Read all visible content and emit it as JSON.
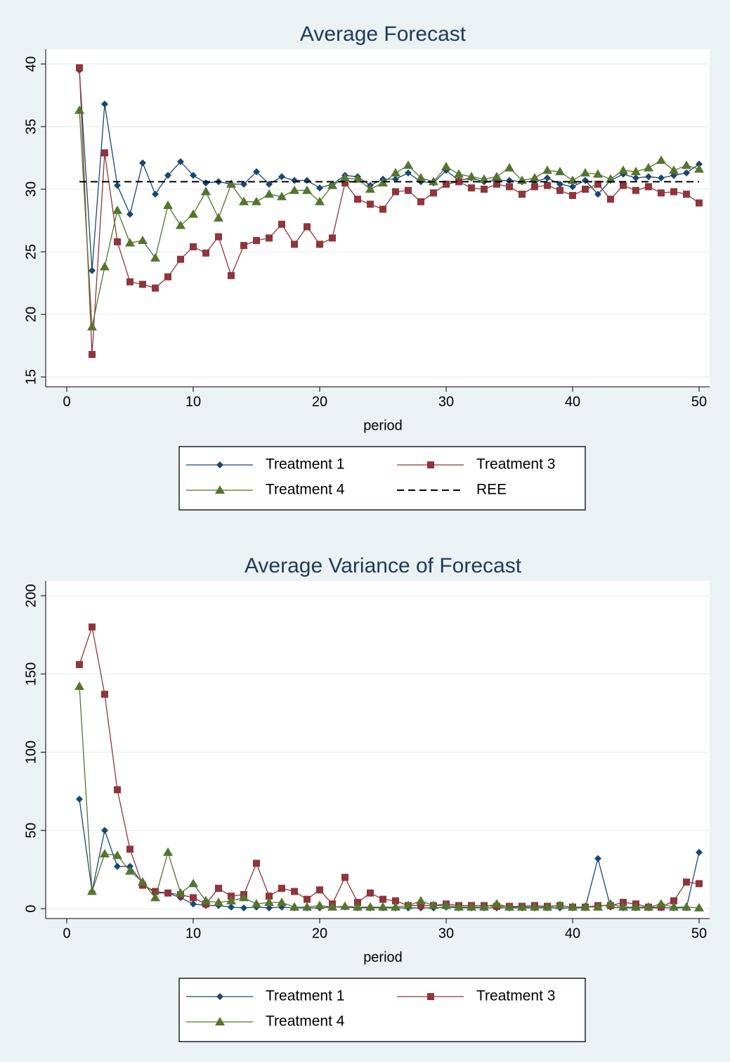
{
  "chart_data": [
    {
      "type": "line",
      "title": "Average Forecast",
      "x_label": "period",
      "x": [
        1,
        2,
        3,
        4,
        5,
        6,
        7,
        8,
        9,
        10,
        11,
        12,
        13,
        14,
        15,
        16,
        17,
        18,
        19,
        20,
        21,
        22,
        23,
        24,
        25,
        26,
        27,
        28,
        29,
        30,
        31,
        32,
        33,
        34,
        35,
        36,
        37,
        38,
        39,
        40,
        41,
        42,
        43,
        44,
        45,
        46,
        47,
        48,
        49,
        50
      ],
      "xlim": [
        0,
        50
      ],
      "xticks": [
        0,
        10,
        20,
        30,
        40,
        50
      ],
      "ylim": [
        15,
        40
      ],
      "yticks": [
        15,
        20,
        25,
        30,
        35,
        40
      ],
      "grid": true,
      "series": [
        {
          "name": "Treatment 1",
          "color": "#1a476f",
          "marker": "diamond",
          "values": [
            39.5,
            23.5,
            36.8,
            30.3,
            28.0,
            32.1,
            29.6,
            31.1,
            32.2,
            31.1,
            30.5,
            30.6,
            30.4,
            30.4,
            31.4,
            30.4,
            31.0,
            30.7,
            30.7,
            30.1,
            30.4,
            31.1,
            31.0,
            30.3,
            30.8,
            30.8,
            31.3,
            30.6,
            30.5,
            31.5,
            30.7,
            30.9,
            30.6,
            30.7,
            30.7,
            30.6,
            30.6,
            30.9,
            30.4,
            30.2,
            30.7,
            29.6,
            30.7,
            31.2,
            30.9,
            31.0,
            30.9,
            31.1,
            31.3,
            32.0
          ]
        },
        {
          "name": "Treatment 3",
          "color": "#90353b",
          "marker": "square",
          "values": [
            39.7,
            16.8,
            32.9,
            25.8,
            22.6,
            22.4,
            22.1,
            23.0,
            24.4,
            25.4,
            24.9,
            26.2,
            23.1,
            25.5,
            25.9,
            26.1,
            27.2,
            25.6,
            27.0,
            25.6,
            26.1,
            30.5,
            29.2,
            28.8,
            28.4,
            29.8,
            29.9,
            29.0,
            29.7,
            30.4,
            30.6,
            30.1,
            30.0,
            30.4,
            30.2,
            29.6,
            30.2,
            30.3,
            29.9,
            29.5,
            30.0,
            30.4,
            29.2,
            30.3,
            29.9,
            30.2,
            29.7,
            29.8,
            29.6,
            28.9
          ]
        },
        {
          "name": "Treatment 4",
          "color": "#55752f",
          "marker": "triangle",
          "values": [
            36.3,
            19.0,
            23.8,
            28.3,
            25.7,
            25.9,
            24.5,
            28.7,
            27.1,
            28.0,
            29.8,
            27.7,
            30.4,
            29.0,
            29.0,
            29.6,
            29.4,
            29.9,
            29.9,
            29.0,
            30.3,
            30.9,
            30.8,
            30.0,
            30.5,
            31.3,
            31.9,
            30.9,
            30.6,
            31.8,
            31.2,
            31.0,
            30.8,
            31.0,
            31.7,
            30.7,
            30.9,
            31.5,
            31.4,
            30.7,
            31.3,
            31.2,
            30.8,
            31.5,
            31.4,
            31.7,
            32.3,
            31.5,
            31.9,
            31.6
          ]
        },
        {
          "name": "REE",
          "color": "#000000",
          "marker": "none",
          "dash": true,
          "values": [
            30.6,
            30.6,
            30.6,
            30.6,
            30.6,
            30.6,
            30.6,
            30.6,
            30.6,
            30.6,
            30.6,
            30.6,
            30.6,
            30.6,
            30.6,
            30.6,
            30.6,
            30.6,
            30.6,
            30.6,
            30.6,
            30.6,
            30.6,
            30.6,
            30.6,
            30.6,
            30.6,
            30.6,
            30.6,
            30.6,
            30.6,
            30.6,
            30.6,
            30.6,
            30.6,
            30.6,
            30.6,
            30.6,
            30.6,
            30.6,
            30.6,
            30.6,
            30.6,
            30.6,
            30.6,
            30.6,
            30.6,
            30.6,
            30.6,
            30.6
          ]
        }
      ]
    },
    {
      "type": "line",
      "title": "Average Variance of Forecast",
      "x_label": "period",
      "x": [
        1,
        2,
        3,
        4,
        5,
        6,
        7,
        8,
        9,
        10,
        11,
        12,
        13,
        14,
        15,
        16,
        17,
        18,
        19,
        20,
        21,
        22,
        23,
        24,
        25,
        26,
        27,
        28,
        29,
        30,
        31,
        32,
        33,
        34,
        35,
        36,
        37,
        38,
        39,
        40,
        41,
        42,
        43,
        44,
        45,
        46,
        47,
        48,
        49,
        50
      ],
      "xlim": [
        0,
        50
      ],
      "xticks": [
        0,
        10,
        20,
        30,
        40,
        50
      ],
      "ylim": [
        0,
        200
      ],
      "yticks": [
        0,
        50,
        100,
        150,
        200
      ],
      "grid": true,
      "series": [
        {
          "name": "Treatment 1",
          "color": "#1a476f",
          "marker": "diamond",
          "values": [
            70,
            11,
            50,
            27,
            27,
            16,
            10,
            10,
            7,
            3,
            2,
            2,
            1,
            0.5,
            1,
            0.5,
            1,
            0.5,
            0.5,
            0.5,
            1,
            1,
            0.5,
            0.5,
            0.5,
            0.5,
            0.5,
            0.5,
            0.5,
            1,
            0.5,
            0.5,
            0.5,
            0.5,
            0.5,
            0.5,
            0.5,
            0.5,
            0.5,
            0.5,
            0.5,
            32,
            1,
            0.5,
            0.5,
            0.5,
            0.5,
            0.5,
            0.5,
            36
          ]
        },
        {
          "name": "Treatment 3",
          "color": "#90353b",
          "marker": "square",
          "values": [
            156,
            180,
            137,
            76,
            38,
            15,
            11,
            10,
            9,
            7,
            3,
            13,
            8,
            9,
            29,
            8,
            13,
            11,
            6,
            12,
            3,
            20,
            4,
            10,
            6,
            5,
            2,
            2,
            2,
            3,
            2,
            2,
            2,
            1.5,
            1.5,
            1.5,
            2,
            1.5,
            2,
            1,
            1,
            2,
            2,
            4,
            3,
            1,
            1,
            5,
            17,
            16
          ]
        },
        {
          "name": "Treatment 4",
          "color": "#55752f",
          "marker": "triangle",
          "values": [
            142,
            11,
            35,
            34,
            24,
            17,
            7,
            36,
            10,
            16,
            5,
            4,
            5,
            7,
            3,
            4,
            4,
            1,
            1,
            2,
            1,
            1.5,
            1,
            1,
            1,
            1,
            2,
            5,
            2,
            2,
            1,
            1,
            1,
            3,
            1,
            1,
            1,
            1,
            2,
            1,
            1,
            1,
            3,
            1,
            1,
            1,
            3,
            1,
            1,
            0.5
          ]
        }
      ]
    }
  ]
}
